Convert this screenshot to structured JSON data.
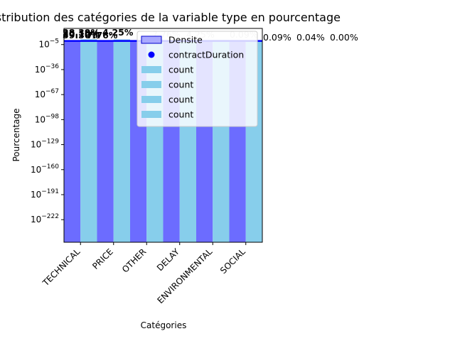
{
  "chart_data": {
    "type": "bar",
    "title": "Distribution des catégories de la variable type en pourcentage",
    "xlabel": "Catégories",
    "ylabel": "Pourcentage",
    "yscale": "log",
    "ylim_exponents": [
      -250,
      15
    ],
    "yticks": [
      {
        "exp": -5,
        "label": "10^-5"
      },
      {
        "exp": -36,
        "label": "10^-36"
      },
      {
        "exp": -67,
        "label": "10^-67"
      },
      {
        "exp": -98,
        "label": "10^-98"
      },
      {
        "exp": -129,
        "label": "10^-129"
      },
      {
        "exp": -160,
        "label": "10^-160"
      },
      {
        "exp": -191,
        "label": "10^-191"
      },
      {
        "exp": -222,
        "label": "10^-222"
      }
    ],
    "categories": [
      "TECHNICAL",
      "PRICE",
      "OTHER",
      "DELAY",
      "ENVIRONMENTAL",
      "SOCIAL"
    ],
    "series": [
      {
        "name": "Densite",
        "type": "bar",
        "color": "#6c6cff",
        "values": [
          0.3,
          0.28,
          0.2,
          0.15,
          0.05,
          0.02
        ]
      },
      {
        "name": "count",
        "type": "bar",
        "color": "#87ceeb",
        "values": [
          39.3,
          28.4,
          20.1,
          7.8,
          4.2,
          0.1
        ]
      },
      {
        "name": "contractDuration",
        "type": "scatter",
        "color": "#0000ff",
        "values": [
          0.3
        ]
      }
    ],
    "legend": {
      "position": "upper-right",
      "entries": [
        {
          "label": "Densite",
          "marker": "bar",
          "color": "#aaaaff"
        },
        {
          "label": "contractDuration",
          "marker": "dot",
          "color": "#0000ff"
        },
        {
          "label": "count",
          "marker": "bar",
          "color": "#87ceeb"
        },
        {
          "label": "count",
          "marker": "bar",
          "color": "#87ceeb"
        },
        {
          "label": "count",
          "marker": "bar",
          "color": "#87ceeb"
        },
        {
          "label": "count",
          "marker": "bar",
          "color": "#87ceeb"
        }
      ]
    },
    "bar_labels": [
      {
        "text": "39.30%",
        "color": "#000000"
      },
      {
        "text": "28.39%",
        "color": "#000000"
      },
      {
        "text": "20.10%",
        "color": "#000000"
      },
      {
        "text": "7.76%",
        "color": "#000000"
      },
      {
        "text": "4.25%",
        "color": "#000000"
      },
      {
        "text": "0.09%",
        "color": "#000000"
      },
      {
        "text": "0.04%",
        "color": "#000000"
      },
      {
        "text": "0.00%",
        "color": "#000000"
      },
      {
        "text": "7.76%",
        "color": "#cccccc"
      },
      {
        "text": "4.25%",
        "color": "#cccccc"
      },
      {
        "text": "0.09%",
        "color": "#cccccc"
      }
    ]
  }
}
